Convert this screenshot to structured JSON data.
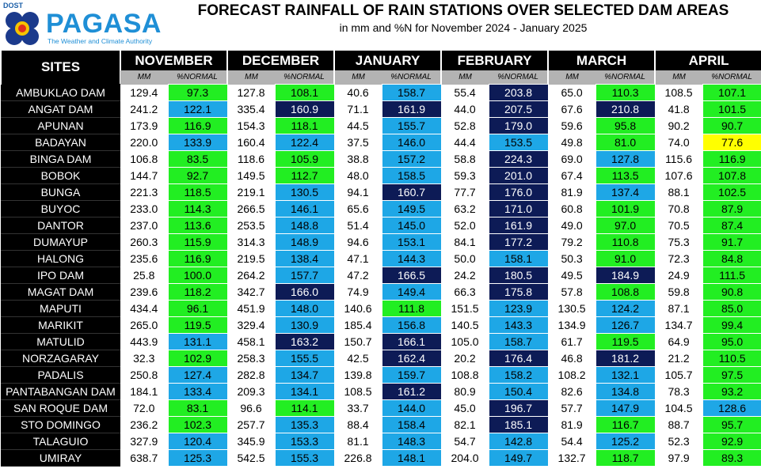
{
  "header": {
    "logo_agency": "DOST",
    "logo_name": "PAGASA",
    "logo_tagline": "The Weather and Climate Authority",
    "title": "FORECAST RAINFALL OF RAIN STATIONS OVER SELECTED DAM AREAS",
    "subtitle": "in mm and %N for November 2024 - January 2025"
  },
  "table": {
    "sites_label": "SITES",
    "sub_mm": "MM",
    "sub_pct": "%NORMAL",
    "months": [
      "NOVEMBER",
      "DECEMBER",
      "JANUARY",
      "FEBRUARY",
      "MARCH",
      "APRIL"
    ],
    "colors": {
      "green": "#22ee22",
      "blue": "#1ea7e6",
      "navy": "#0d1b56",
      "yellow": "#ffff00"
    },
    "rows": [
      {
        "site": "AMBUKLAO DAM",
        "values": [
          [
            "129.4",
            "97.3",
            "g"
          ],
          [
            "127.8",
            "108.1",
            "g"
          ],
          [
            "40.6",
            "158.7",
            "b"
          ],
          [
            "55.4",
            "203.8",
            "n"
          ],
          [
            "65.0",
            "110.3",
            "g"
          ],
          [
            "108.5",
            "107.1",
            "g"
          ]
        ]
      },
      {
        "site": "ANGAT DAM",
        "values": [
          [
            "241.2",
            "122.1",
            "b"
          ],
          [
            "335.4",
            "160.9",
            "n"
          ],
          [
            "71.1",
            "161.9",
            "n"
          ],
          [
            "44.0",
            "207.5",
            "n"
          ],
          [
            "67.6",
            "210.8",
            "n"
          ],
          [
            "41.8",
            "101.5",
            "g"
          ]
        ]
      },
      {
        "site": "APUNAN",
        "values": [
          [
            "173.9",
            "116.9",
            "g"
          ],
          [
            "154.3",
            "118.1",
            "g"
          ],
          [
            "44.5",
            "155.7",
            "b"
          ],
          [
            "52.8",
            "179.0",
            "n"
          ],
          [
            "59.6",
            "95.8",
            "g"
          ],
          [
            "90.2",
            "90.7",
            "g"
          ]
        ]
      },
      {
        "site": "BADAYAN",
        "values": [
          [
            "220.0",
            "133.9",
            "b"
          ],
          [
            "160.4",
            "122.4",
            "b"
          ],
          [
            "37.5",
            "146.0",
            "b"
          ],
          [
            "44.4",
            "153.5",
            "b"
          ],
          [
            "49.8",
            "81.0",
            "g"
          ],
          [
            "74.0",
            "77.6",
            "y"
          ]
        ]
      },
      {
        "site": "BINGA DAM",
        "values": [
          [
            "106.8",
            "83.5",
            "g"
          ],
          [
            "118.6",
            "105.9",
            "g"
          ],
          [
            "38.8",
            "157.2",
            "b"
          ],
          [
            "58.8",
            "224.3",
            "n"
          ],
          [
            "69.0",
            "127.8",
            "b"
          ],
          [
            "115.6",
            "116.9",
            "g"
          ]
        ]
      },
      {
        "site": "BOBOK",
        "values": [
          [
            "144.7",
            "92.7",
            "g"
          ],
          [
            "149.5",
            "112.7",
            "g"
          ],
          [
            "48.0",
            "158.5",
            "b"
          ],
          [
            "59.3",
            "201.0",
            "n"
          ],
          [
            "67.4",
            "113.5",
            "g"
          ],
          [
            "107.6",
            "107.8",
            "g"
          ]
        ]
      },
      {
        "site": "BUNGA",
        "values": [
          [
            "221.3",
            "118.5",
            "g"
          ],
          [
            "219.1",
            "130.5",
            "b"
          ],
          [
            "94.1",
            "160.7",
            "n"
          ],
          [
            "77.7",
            "176.0",
            "n"
          ],
          [
            "81.9",
            "137.4",
            "b"
          ],
          [
            "88.1",
            "102.5",
            "g"
          ]
        ]
      },
      {
        "site": "BUYOC",
        "values": [
          [
            "233.0",
            "114.3",
            "g"
          ],
          [
            "266.5",
            "146.1",
            "b"
          ],
          [
            "65.6",
            "149.5",
            "b"
          ],
          [
            "63.2",
            "171.0",
            "n"
          ],
          [
            "60.8",
            "101.9",
            "g"
          ],
          [
            "70.8",
            "87.9",
            "g"
          ]
        ]
      },
      {
        "site": "DANTOR",
        "values": [
          [
            "237.0",
            "113.6",
            "g"
          ],
          [
            "253.5",
            "148.8",
            "b"
          ],
          [
            "51.4",
            "145.0",
            "b"
          ],
          [
            "52.0",
            "161.9",
            "n"
          ],
          [
            "49.0",
            "97.0",
            "g"
          ],
          [
            "70.5",
            "87.4",
            "g"
          ]
        ]
      },
      {
        "site": "DUMAYUP",
        "values": [
          [
            "260.3",
            "115.9",
            "g"
          ],
          [
            "314.3",
            "148.9",
            "b"
          ],
          [
            "94.6",
            "153.1",
            "b"
          ],
          [
            "84.1",
            "177.2",
            "n"
          ],
          [
            "79.2",
            "110.8",
            "g"
          ],
          [
            "75.3",
            "91.7",
            "g"
          ]
        ]
      },
      {
        "site": "HALONG",
        "values": [
          [
            "235.6",
            "116.9",
            "g"
          ],
          [
            "219.5",
            "138.4",
            "b"
          ],
          [
            "47.1",
            "144.3",
            "b"
          ],
          [
            "50.0",
            "158.1",
            "b"
          ],
          [
            "50.3",
            "91.0",
            "g"
          ],
          [
            "72.3",
            "84.8",
            "g"
          ]
        ]
      },
      {
        "site": "IPO DAM",
        "values": [
          [
            "25.8",
            "100.0",
            "g"
          ],
          [
            "264.2",
            "157.7",
            "b"
          ],
          [
            "47.2",
            "166.5",
            "n"
          ],
          [
            "24.2",
            "180.5",
            "n"
          ],
          [
            "49.5",
            "184.9",
            "n"
          ],
          [
            "24.9",
            "111.5",
            "g"
          ]
        ]
      },
      {
        "site": "MAGAT DAM",
        "values": [
          [
            "239.6",
            "118.2",
            "g"
          ],
          [
            "342.7",
            "166.0",
            "n"
          ],
          [
            "74.9",
            "149.4",
            "b"
          ],
          [
            "66.3",
            "175.8",
            "n"
          ],
          [
            "57.8",
            "108.8",
            "g"
          ],
          [
            "59.8",
            "90.8",
            "g"
          ]
        ]
      },
      {
        "site": "MAPUTI",
        "values": [
          [
            "434.4",
            "96.1",
            "g"
          ],
          [
            "451.9",
            "148.0",
            "b"
          ],
          [
            "140.6",
            "111.8",
            "g"
          ],
          [
            "151.5",
            "123.9",
            "b"
          ],
          [
            "130.5",
            "124.2",
            "b"
          ],
          [
            "87.1",
            "85.0",
            "g"
          ]
        ]
      },
      {
        "site": "MARIKIT",
        "values": [
          [
            "265.0",
            "119.5",
            "g"
          ],
          [
            "329.4",
            "130.9",
            "b"
          ],
          [
            "185.4",
            "156.8",
            "b"
          ],
          [
            "140.5",
            "143.3",
            "b"
          ],
          [
            "134.9",
            "126.7",
            "b"
          ],
          [
            "134.7",
            "99.4",
            "g"
          ]
        ]
      },
      {
        "site": "MATULID",
        "values": [
          [
            "443.9",
            "131.1",
            "b"
          ],
          [
            "458.1",
            "163.2",
            "n"
          ],
          [
            "150.7",
            "166.1",
            "n"
          ],
          [
            "105.0",
            "158.7",
            "b"
          ],
          [
            "61.7",
            "119.5",
            "g"
          ],
          [
            "64.9",
            "95.0",
            "g"
          ]
        ]
      },
      {
        "site": "NORZAGARAY",
        "values": [
          [
            "32.3",
            "102.9",
            "g"
          ],
          [
            "258.3",
            "155.5",
            "b"
          ],
          [
            "42.5",
            "162.4",
            "n"
          ],
          [
            "20.2",
            "176.4",
            "n"
          ],
          [
            "46.8",
            "181.2",
            "n"
          ],
          [
            "21.2",
            "110.5",
            "g"
          ]
        ]
      },
      {
        "site": "PADALIS",
        "values": [
          [
            "250.8",
            "127.4",
            "b"
          ],
          [
            "282.8",
            "134.7",
            "b"
          ],
          [
            "139.8",
            "159.7",
            "b"
          ],
          [
            "108.8",
            "158.2",
            "b"
          ],
          [
            "108.2",
            "132.1",
            "b"
          ],
          [
            "105.7",
            "97.5",
            "g"
          ]
        ]
      },
      {
        "site": "PANTABANGAN DAM",
        "values": [
          [
            "184.1",
            "133.4",
            "b"
          ],
          [
            "209.3",
            "134.1",
            "b"
          ],
          [
            "108.5",
            "161.2",
            "n"
          ],
          [
            "80.9",
            "150.4",
            "b"
          ],
          [
            "82.6",
            "134.8",
            "b"
          ],
          [
            "78.3",
            "93.2",
            "g"
          ]
        ]
      },
      {
        "site": "SAN ROQUE DAM",
        "values": [
          [
            "72.0",
            "83.1",
            "g"
          ],
          [
            "96.6",
            "114.1",
            "g"
          ],
          [
            "33.7",
            "144.0",
            "b"
          ],
          [
            "45.0",
            "196.7",
            "n"
          ],
          [
            "57.7",
            "147.9",
            "b"
          ],
          [
            "104.5",
            "128.6",
            "b"
          ]
        ]
      },
      {
        "site": "STO DOMINGO",
        "values": [
          [
            "236.2",
            "102.3",
            "g"
          ],
          [
            "257.7",
            "135.3",
            "b"
          ],
          [
            "88.4",
            "158.4",
            "b"
          ],
          [
            "82.1",
            "185.1",
            "n"
          ],
          [
            "81.9",
            "116.7",
            "g"
          ],
          [
            "88.7",
            "95.7",
            "g"
          ]
        ]
      },
      {
        "site": "TALAGUIO",
        "values": [
          [
            "327.9",
            "120.4",
            "b"
          ],
          [
            "345.9",
            "153.3",
            "b"
          ],
          [
            "81.1",
            "148.3",
            "b"
          ],
          [
            "54.7",
            "142.8",
            "b"
          ],
          [
            "54.4",
            "125.2",
            "b"
          ],
          [
            "52.3",
            "92.9",
            "g"
          ]
        ]
      },
      {
        "site": "UMIRAY",
        "values": [
          [
            "638.7",
            "125.3",
            "b"
          ],
          [
            "542.5",
            "155.3",
            "b"
          ],
          [
            "226.8",
            "148.1",
            "b"
          ],
          [
            "204.0",
            "149.7",
            "b"
          ],
          [
            "132.7",
            "118.7",
            "g"
          ],
          [
            "97.9",
            "89.3",
            "g"
          ]
        ]
      }
    ]
  }
}
